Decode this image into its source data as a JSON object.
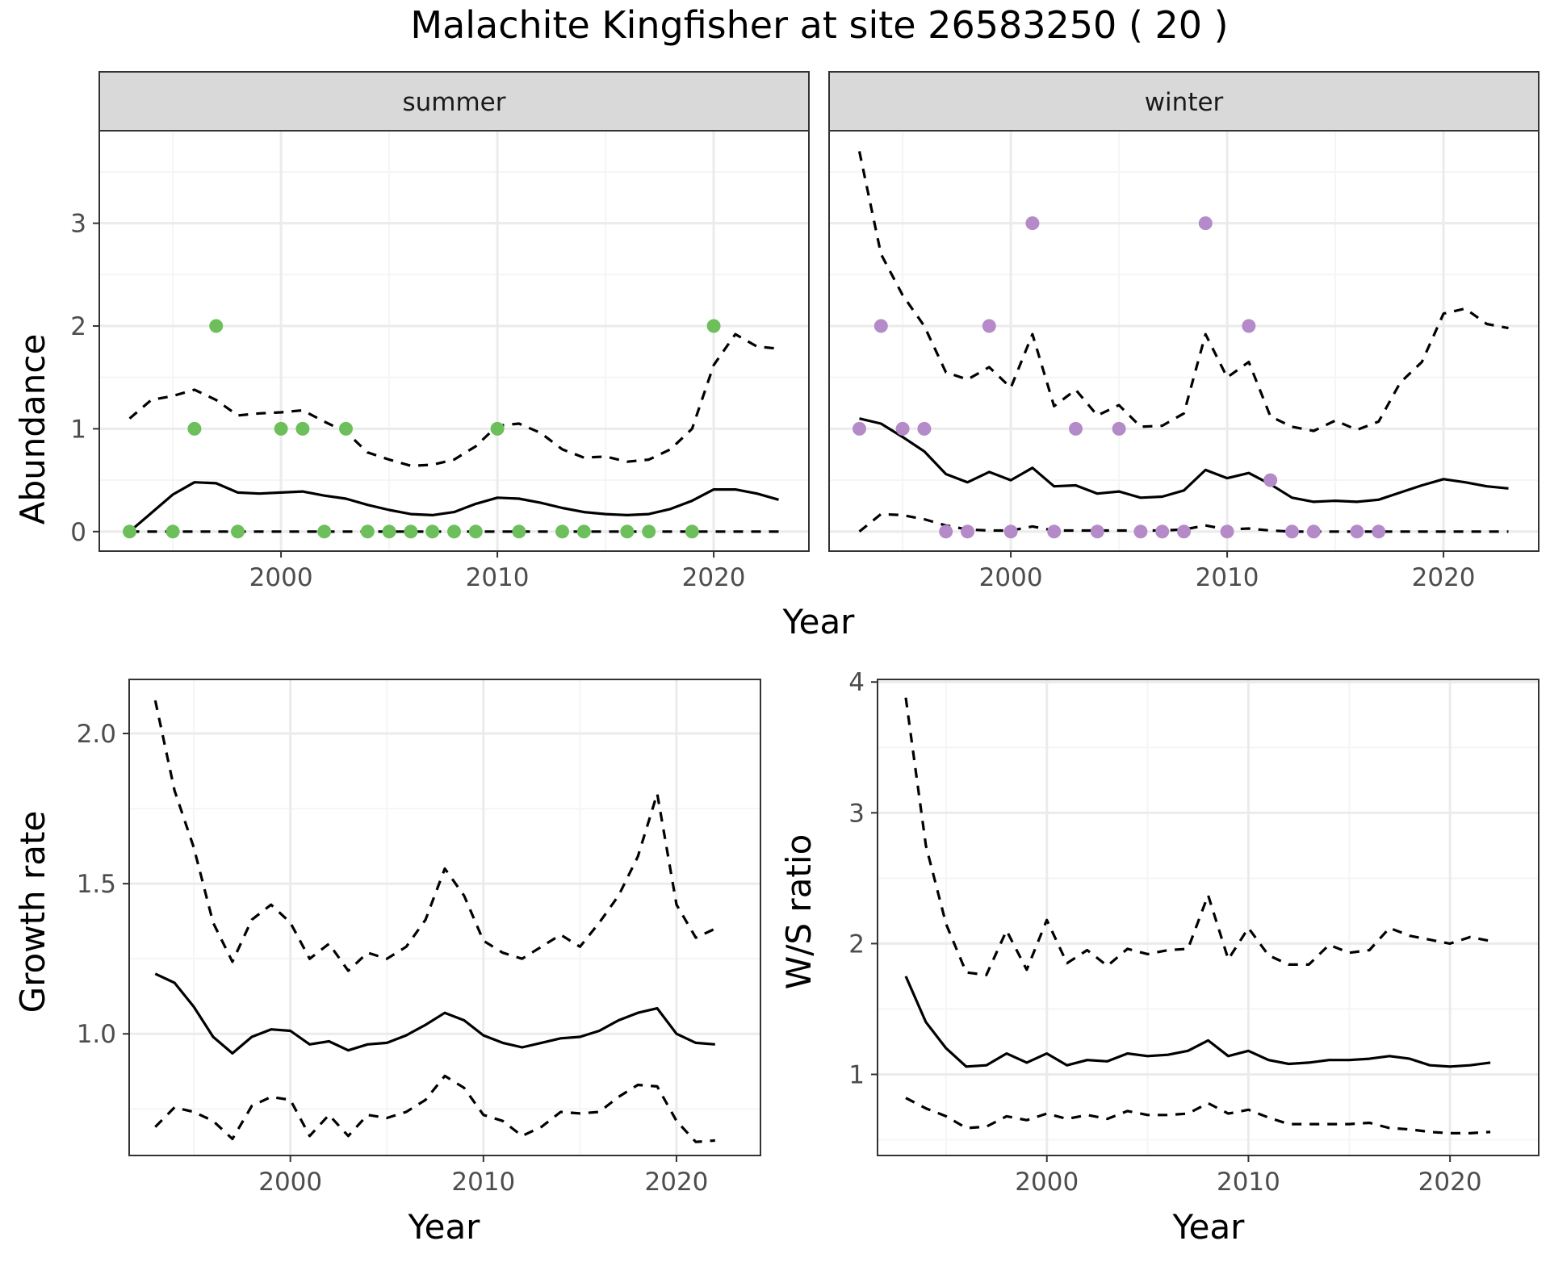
{
  "title": "Malachite Kingfisher at site 26583250 ( 20 )",
  "colors": {
    "summer_points": "#6dbf5c",
    "winter_points": "#b48ac8",
    "lines": "#000000",
    "strip_fill": "#d9d9d9",
    "panel_border": "#333333",
    "grid_major": "#ebebeb",
    "grid_minor": "#f5f5f5",
    "tick_label": "#4d4d4d"
  },
  "chart_data": [
    {
      "type": "line",
      "panel": "summer",
      "facet_label": "summer",
      "ylabel": "Abundance",
      "xlabel": "Year",
      "xlim": [
        1991.6,
        2024.4
      ],
      "ylim": [
        -0.19,
        3.9
      ],
      "xticks": [
        2000,
        2010,
        2020
      ],
      "yticks": [
        0,
        1,
        2,
        3
      ],
      "grid": true,
      "point_color": "summer_points",
      "series": [
        {
          "style": "solid",
          "x": [
            1993,
            1994,
            1995,
            1996,
            1997,
            1998,
            1999,
            2000,
            2001,
            2002,
            2003,
            2004,
            2005,
            2006,
            2007,
            2008,
            2009,
            2010,
            2011,
            2012,
            2013,
            2014,
            2015,
            2016,
            2017,
            2018,
            2019,
            2020,
            2021,
            2022,
            2023
          ],
          "y": [
            0.0,
            0.18,
            0.36,
            0.48,
            0.47,
            0.38,
            0.37,
            0.38,
            0.39,
            0.35,
            0.32,
            0.26,
            0.21,
            0.17,
            0.16,
            0.19,
            0.27,
            0.33,
            0.32,
            0.28,
            0.23,
            0.19,
            0.17,
            0.16,
            0.17,
            0.22,
            0.3,
            0.41,
            0.41,
            0.37,
            0.31
          ]
        },
        {
          "style": "dashed",
          "x": [
            1993,
            1994,
            1995,
            1996,
            1997,
            1998,
            1999,
            2000,
            2001,
            2002,
            2003,
            2004,
            2005,
            2006,
            2007,
            2008,
            2009,
            2010,
            2011,
            2012,
            2013,
            2014,
            2015,
            2016,
            2017,
            2018,
            2019,
            2020,
            2021,
            2022,
            2023
          ],
          "y": [
            1.1,
            1.28,
            1.32,
            1.38,
            1.28,
            1.13,
            1.15,
            1.16,
            1.18,
            1.07,
            0.97,
            0.77,
            0.7,
            0.64,
            0.65,
            0.7,
            0.83,
            1.03,
            1.05,
            0.96,
            0.8,
            0.72,
            0.73,
            0.68,
            0.7,
            0.8,
            1.0,
            1.62,
            1.92,
            1.8,
            1.78
          ]
        },
        {
          "style": "dashed",
          "x": [
            1993,
            1994,
            1995,
            1996,
            1997,
            1998,
            1999,
            2000,
            2001,
            2002,
            2003,
            2004,
            2005,
            2006,
            2007,
            2008,
            2009,
            2010,
            2011,
            2012,
            2013,
            2014,
            2015,
            2016,
            2017,
            2018,
            2019,
            2020,
            2021,
            2022,
            2023
          ],
          "y": [
            0,
            0,
            0,
            0,
            0,
            0,
            0,
            0,
            0,
            0,
            0,
            0,
            0,
            0,
            0,
            0,
            0,
            0,
            0,
            0,
            0,
            0,
            0,
            0,
            0,
            0,
            0,
            0,
            0,
            0,
            0
          ]
        }
      ],
      "points": {
        "x": [
          1993,
          1995,
          1996,
          1997,
          1998,
          2000,
          2001,
          2002,
          2003,
          2004,
          2005,
          2006,
          2007,
          2008,
          2009,
          2010,
          2011,
          2013,
          2014,
          2016,
          2017,
          2019,
          2020
        ],
        "y": [
          0,
          0,
          1,
          2,
          0,
          1,
          1,
          0,
          1,
          0,
          0,
          0,
          0,
          0,
          0,
          1,
          0,
          0,
          0,
          0,
          0,
          0,
          2
        ]
      }
    },
    {
      "type": "line",
      "panel": "winter",
      "facet_label": "winter",
      "ylabel": "",
      "xlabel": "Year",
      "xlim": [
        1991.6,
        2024.4
      ],
      "ylim": [
        -0.19,
        3.9
      ],
      "xticks": [
        2000,
        2010,
        2020
      ],
      "yticks": [
        0,
        1,
        2,
        3
      ],
      "grid": true,
      "point_color": "winter_points",
      "series": [
        {
          "style": "solid",
          "x": [
            1993,
            1994,
            1995,
            1996,
            1997,
            1998,
            1999,
            2000,
            2001,
            2002,
            2003,
            2004,
            2005,
            2006,
            2007,
            2008,
            2009,
            2010,
            2011,
            2012,
            2013,
            2014,
            2015,
            2016,
            2017,
            2018,
            2019,
            2020,
            2021,
            2022,
            2023
          ],
          "y": [
            1.1,
            1.05,
            0.92,
            0.78,
            0.56,
            0.48,
            0.58,
            0.5,
            0.62,
            0.44,
            0.45,
            0.37,
            0.39,
            0.33,
            0.34,
            0.4,
            0.6,
            0.52,
            0.57,
            0.46,
            0.33,
            0.29,
            0.3,
            0.29,
            0.31,
            0.38,
            0.45,
            0.51,
            0.48,
            0.44,
            0.42
          ]
        },
        {
          "style": "dashed",
          "x": [
            1993,
            1994,
            1995,
            1996,
            1997,
            1998,
            1999,
            2000,
            2001,
            2002,
            2003,
            2004,
            2005,
            2006,
            2007,
            2008,
            2009,
            2010,
            2011,
            2012,
            2013,
            2014,
            2015,
            2016,
            2017,
            2018,
            2019,
            2020,
            2021,
            2022,
            2023
          ],
          "y": [
            3.7,
            2.7,
            2.3,
            2.0,
            1.55,
            1.48,
            1.6,
            1.4,
            1.92,
            1.22,
            1.38,
            1.13,
            1.23,
            1.02,
            1.03,
            1.15,
            1.92,
            1.5,
            1.65,
            1.12,
            1.02,
            0.98,
            1.08,
            0.99,
            1.07,
            1.45,
            1.65,
            2.12,
            2.17,
            2.02,
            1.98
          ]
        },
        {
          "style": "dashed",
          "x": [
            1993,
            1994,
            1995,
            1996,
            1997,
            1998,
            1999,
            2000,
            2001,
            2002,
            2003,
            2004,
            2005,
            2006,
            2007,
            2008,
            2009,
            2010,
            2011,
            2012,
            2013,
            2014,
            2015,
            2016,
            2017,
            2018,
            2019,
            2020,
            2021,
            2022,
            2023
          ],
          "y": [
            0.0,
            0.17,
            0.16,
            0.12,
            0.06,
            0.02,
            0.01,
            0.01,
            0.05,
            0.01,
            0.01,
            0.01,
            0.01,
            0.01,
            0.01,
            0.02,
            0.06,
            0.02,
            0.03,
            0.01,
            0.0,
            0.0,
            0.0,
            0.0,
            0.0,
            0.0,
            0.0,
            0.0,
            0.0,
            0.0,
            0.0
          ]
        }
      ],
      "points": {
        "x": [
          1993,
          1994,
          1995,
          1996,
          1997,
          1998,
          1999,
          2000,
          2001,
          2002,
          2003,
          2004,
          2005,
          2006,
          2007,
          2008,
          2009,
          2010,
          2011,
          2012,
          2013,
          2014,
          2016,
          2017
        ],
        "y": [
          1,
          2,
          1,
          1,
          0,
          0,
          2,
          0,
          3,
          0,
          1,
          0,
          1,
          0,
          0,
          0,
          3,
          0,
          2,
          0.5,
          0,
          0,
          0,
          0
        ]
      }
    },
    {
      "type": "line",
      "panel": "growth",
      "ylabel": "Growth rate",
      "xlabel": "Year",
      "xlim": [
        1991.65,
        2024.35
      ],
      "ylim": [
        0.595,
        2.18
      ],
      "xticks": [
        2000,
        2010,
        2020
      ],
      "yticks": [
        1.0,
        1.5,
        2.0
      ],
      "ytick_labels": [
        "1.0",
        "1.5",
        "2.0"
      ],
      "grid": true,
      "series": [
        {
          "style": "solid",
          "x": [
            1993,
            1994,
            1995,
            1996,
            1997,
            1998,
            1999,
            2000,
            2001,
            2002,
            2003,
            2004,
            2005,
            2006,
            2007,
            2008,
            2009,
            2010,
            2011,
            2012,
            2013,
            2014,
            2015,
            2016,
            2017,
            2018,
            2019,
            2020,
            2021,
            2022
          ],
          "y": [
            1.2,
            1.17,
            1.09,
            0.99,
            0.935,
            0.99,
            1.015,
            1.01,
            0.965,
            0.975,
            0.945,
            0.965,
            0.97,
            0.995,
            1.03,
            1.07,
            1.045,
            0.995,
            0.97,
            0.955,
            0.97,
            0.985,
            0.99,
            1.01,
            1.045,
            1.07,
            1.085,
            1.0,
            0.97,
            0.965
          ]
        },
        {
          "style": "dashed",
          "x": [
            1993,
            1994,
            1995,
            1996,
            1997,
            1998,
            1999,
            2000,
            2001,
            2002,
            2003,
            2004,
            2005,
            2006,
            2007,
            2008,
            2009,
            2010,
            2011,
            2012,
            2013,
            2014,
            2015,
            2016,
            2017,
            2018,
            2019,
            2020,
            2021,
            2022
          ],
          "y": [
            2.11,
            1.81,
            1.62,
            1.37,
            1.24,
            1.38,
            1.43,
            1.37,
            1.25,
            1.3,
            1.21,
            1.27,
            1.25,
            1.29,
            1.38,
            1.55,
            1.46,
            1.31,
            1.27,
            1.25,
            1.29,
            1.33,
            1.29,
            1.37,
            1.46,
            1.59,
            1.8,
            1.43,
            1.32,
            1.35
          ]
        },
        {
          "style": "dashed",
          "x": [
            1993,
            1994,
            1995,
            1996,
            1997,
            1998,
            1999,
            2000,
            2001,
            2002,
            2003,
            2004,
            2005,
            2006,
            2007,
            2008,
            2009,
            2010,
            2011,
            2012,
            2013,
            2014,
            2015,
            2016,
            2017,
            2018,
            2019,
            2020,
            2021,
            2022
          ],
          "y": [
            0.69,
            0.755,
            0.74,
            0.71,
            0.65,
            0.76,
            0.79,
            0.78,
            0.66,
            0.73,
            0.66,
            0.73,
            0.72,
            0.74,
            0.78,
            0.86,
            0.82,
            0.73,
            0.71,
            0.66,
            0.69,
            0.74,
            0.735,
            0.74,
            0.79,
            0.83,
            0.825,
            0.71,
            0.64,
            0.645
          ]
        }
      ]
    },
    {
      "type": "line",
      "panel": "ratio",
      "ylabel": "W/S ratio",
      "xlabel": "Year",
      "xlim": [
        1991.6,
        2024.4
      ],
      "ylim": [
        0.38,
        4.02
      ],
      "xticks": [
        2000,
        2010,
        2020
      ],
      "yticks": [
        1,
        2,
        3,
        4
      ],
      "ytick_labels": [
        "1",
        "2",
        "3",
        "4"
      ],
      "grid": true,
      "series": [
        {
          "style": "solid",
          "x": [
            1993,
            1994,
            1995,
            1996,
            1997,
            1998,
            1999,
            2000,
            2001,
            2002,
            2003,
            2004,
            2005,
            2006,
            2007,
            2008,
            2009,
            2010,
            2011,
            2012,
            2013,
            2014,
            2015,
            2016,
            2017,
            2018,
            2019,
            2020,
            2021,
            2022
          ],
          "y": [
            1.75,
            1.4,
            1.2,
            1.06,
            1.07,
            1.16,
            1.09,
            1.16,
            1.07,
            1.11,
            1.1,
            1.16,
            1.14,
            1.15,
            1.18,
            1.26,
            1.14,
            1.18,
            1.11,
            1.08,
            1.09,
            1.11,
            1.11,
            1.12,
            1.14,
            1.12,
            1.07,
            1.06,
            1.07,
            1.09
          ]
        },
        {
          "style": "dashed",
          "x": [
            1993,
            1994,
            1995,
            1996,
            1997,
            1998,
            1999,
            2000,
            2001,
            2002,
            2003,
            2004,
            2005,
            2006,
            2007,
            2008,
            2009,
            2010,
            2011,
            2012,
            2013,
            2014,
            2015,
            2016,
            2017,
            2018,
            2019,
            2020,
            2021,
            2022
          ],
          "y": [
            3.88,
            2.75,
            2.15,
            1.78,
            1.76,
            2.1,
            1.8,
            2.18,
            1.85,
            1.95,
            1.83,
            1.96,
            1.92,
            1.95,
            1.96,
            2.37,
            1.88,
            2.12,
            1.91,
            1.84,
            1.84,
            1.99,
            1.93,
            1.95,
            2.12,
            2.06,
            2.03,
            2.0,
            2.05,
            2.02
          ]
        },
        {
          "style": "dashed",
          "x": [
            1993,
            1994,
            1995,
            1996,
            1997,
            1998,
            1999,
            2000,
            2001,
            2002,
            2003,
            2004,
            2005,
            2006,
            2007,
            2008,
            2009,
            2010,
            2011,
            2012,
            2013,
            2014,
            2015,
            2016,
            2017,
            2018,
            2019,
            2020,
            2021,
            2022
          ],
          "y": [
            0.82,
            0.74,
            0.68,
            0.59,
            0.6,
            0.68,
            0.65,
            0.7,
            0.66,
            0.69,
            0.66,
            0.72,
            0.69,
            0.69,
            0.7,
            0.78,
            0.7,
            0.73,
            0.67,
            0.62,
            0.62,
            0.62,
            0.62,
            0.63,
            0.59,
            0.58,
            0.56,
            0.55,
            0.55,
            0.56
          ]
        }
      ]
    }
  ]
}
